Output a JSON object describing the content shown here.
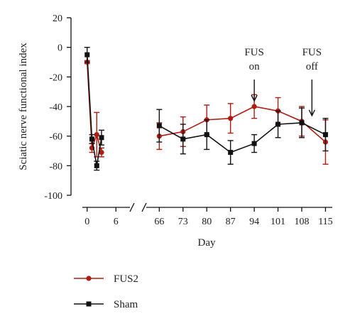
{
  "colors": {
    "FUS2": "#b01c12",
    "Sham": "#111111",
    "axis": "#111111"
  },
  "chart_data": {
    "type": "line",
    "xlabel": "Day",
    "ylabel": "Sciatic nerve functional index",
    "ylim": [
      -100,
      20
    ],
    "yticks": [
      20,
      0,
      -20,
      -40,
      -60,
      -80,
      -100
    ],
    "x_broken": true,
    "segments": [
      {
        "range": [
          -1,
          7
        ],
        "ticks": [
          0,
          6
        ]
      },
      {
        "range": [
          63,
          117
        ],
        "ticks": [
          66,
          73,
          80,
          87,
          94,
          101,
          108,
          115
        ]
      }
    ],
    "series": [
      {
        "name": "FUS2",
        "marker": "circle",
        "color": "#b01c12",
        "x": [
          0,
          1,
          2,
          3,
          66,
          73,
          80,
          87,
          94,
          101,
          108,
          115
        ],
        "y": [
          -10,
          -68,
          -59,
          -71,
          -60,
          -57,
          -49,
          -48,
          -40,
          -43,
          -50,
          -64
        ],
        "err": [
          1,
          3,
          15,
          3,
          9,
          10,
          10,
          10,
          8,
          9,
          10,
          15
        ]
      },
      {
        "name": "Sham",
        "marker": "square",
        "color": "#111111",
        "x": [
          0,
          1,
          2,
          3,
          66,
          73,
          80,
          87,
          94,
          101,
          108,
          115
        ],
        "y": [
          -5,
          -62,
          -80,
          -61,
          -53,
          -62,
          -59,
          -71,
          -65,
          -52,
          -51,
          -59
        ],
        "err": [
          5,
          3,
          3,
          5,
          11,
          10,
          10,
          8,
          6,
          9,
          10,
          11
        ]
      }
    ],
    "annotations": [
      {
        "lines": [
          "FUS",
          "on"
        ],
        "x": 94,
        "arrow_to_y": -40
      },
      {
        "lines": [
          "FUS",
          "off"
        ],
        "x": 111,
        "arrow_to_y": -50
      }
    ],
    "legend": {
      "position": "bottom-left",
      "entries": [
        "FUS2",
        "Sham"
      ]
    }
  }
}
